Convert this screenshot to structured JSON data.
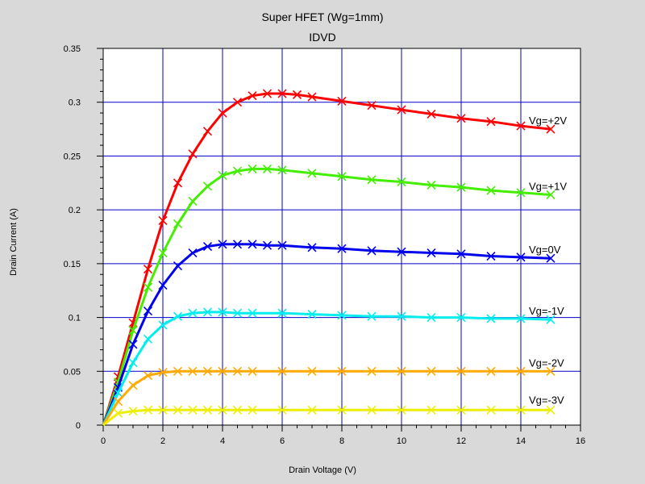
{
  "chart_data": {
    "type": "line",
    "title": "Super HFET (Wg=1mm)",
    "subtitle": "IDVD",
    "xlabel": "Drain Voltage (V)",
    "ylabel": "Drain Current (A)",
    "xlim": [
      0,
      16
    ],
    "ylim": [
      0,
      0.35
    ],
    "xticks": [
      "0",
      "2",
      "4",
      "6",
      "8",
      "10",
      "12",
      "14",
      "16"
    ],
    "yticks": [
      "0",
      "0.05",
      "0.1",
      "0.15",
      "0.2",
      "0.25",
      "0.3",
      "0.35"
    ],
    "grid": true,
    "series": [
      {
        "name": "Vg=+2V",
        "color": "#ff0000",
        "x": [
          0,
          0.5,
          1,
          1.5,
          2,
          2.5,
          3,
          3.5,
          4,
          4.5,
          5,
          5.5,
          6,
          6.5,
          7,
          8,
          9,
          10,
          11,
          12,
          13,
          14,
          15
        ],
        "y": [
          0,
          0.045,
          0.095,
          0.145,
          0.19,
          0.225,
          0.252,
          0.273,
          0.29,
          0.3,
          0.306,
          0.308,
          0.308,
          0.307,
          0.305,
          0.301,
          0.297,
          0.293,
          0.289,
          0.285,
          0.282,
          0.278,
          0.275
        ]
      },
      {
        "name": "Vg=+1V",
        "color": "#44ee00",
        "x": [
          0,
          0.5,
          1,
          1.5,
          2,
          2.5,
          3,
          3.5,
          4,
          4.5,
          5,
          5.5,
          6,
          7,
          8,
          9,
          10,
          11,
          12,
          13,
          14,
          15
        ],
        "y": [
          0,
          0.04,
          0.088,
          0.128,
          0.16,
          0.187,
          0.208,
          0.222,
          0.232,
          0.236,
          0.238,
          0.238,
          0.237,
          0.234,
          0.231,
          0.228,
          0.226,
          0.223,
          0.221,
          0.218,
          0.216,
          0.214
        ]
      },
      {
        "name": "Vg=0V",
        "color": "#0000ee",
        "x": [
          0,
          0.5,
          1,
          1.5,
          2,
          2.5,
          3,
          3.5,
          4,
          4.5,
          5,
          5.5,
          6,
          7,
          8,
          9,
          10,
          11,
          12,
          13,
          14,
          15
        ],
        "y": [
          0,
          0.035,
          0.075,
          0.106,
          0.13,
          0.148,
          0.16,
          0.166,
          0.168,
          0.168,
          0.168,
          0.167,
          0.167,
          0.165,
          0.164,
          0.162,
          0.161,
          0.16,
          0.159,
          0.157,
          0.156,
          0.155
        ]
      },
      {
        "name": "Vg=-1V",
        "color": "#00eeee",
        "x": [
          0,
          0.5,
          1,
          1.5,
          2,
          2.5,
          3,
          3.5,
          4,
          4.5,
          5,
          6,
          7,
          8,
          9,
          10,
          11,
          12,
          13,
          14,
          15
        ],
        "y": [
          0,
          0.03,
          0.058,
          0.08,
          0.093,
          0.101,
          0.104,
          0.105,
          0.105,
          0.104,
          0.104,
          0.104,
          0.103,
          0.102,
          0.101,
          0.101,
          0.1,
          0.1,
          0.099,
          0.099,
          0.098
        ]
      },
      {
        "name": "Vg=-2V",
        "color": "#ffaa00",
        "x": [
          0,
          0.5,
          1,
          1.5,
          2,
          2.5,
          3,
          3.5,
          4,
          4.5,
          5,
          6,
          7,
          8,
          9,
          10,
          11,
          12,
          13,
          14,
          15
        ],
        "y": [
          0,
          0.022,
          0.037,
          0.046,
          0.049,
          0.05,
          0.05,
          0.05,
          0.05,
          0.05,
          0.05,
          0.05,
          0.05,
          0.05,
          0.05,
          0.05,
          0.05,
          0.05,
          0.05,
          0.05,
          0.05
        ]
      },
      {
        "name": "Vg=-3V",
        "color": "#eeee00",
        "x": [
          0,
          0.5,
          1,
          1.5,
          2,
          2.5,
          3,
          3.5,
          4,
          4.5,
          5,
          6,
          7,
          8,
          9,
          10,
          11,
          12,
          13,
          14,
          15
        ],
        "y": [
          0,
          0.011,
          0.013,
          0.014,
          0.014,
          0.014,
          0.014,
          0.014,
          0.014,
          0.014,
          0.014,
          0.014,
          0.014,
          0.014,
          0.014,
          0.014,
          0.014,
          0.014,
          0.014,
          0.014,
          0.014
        ]
      }
    ]
  }
}
